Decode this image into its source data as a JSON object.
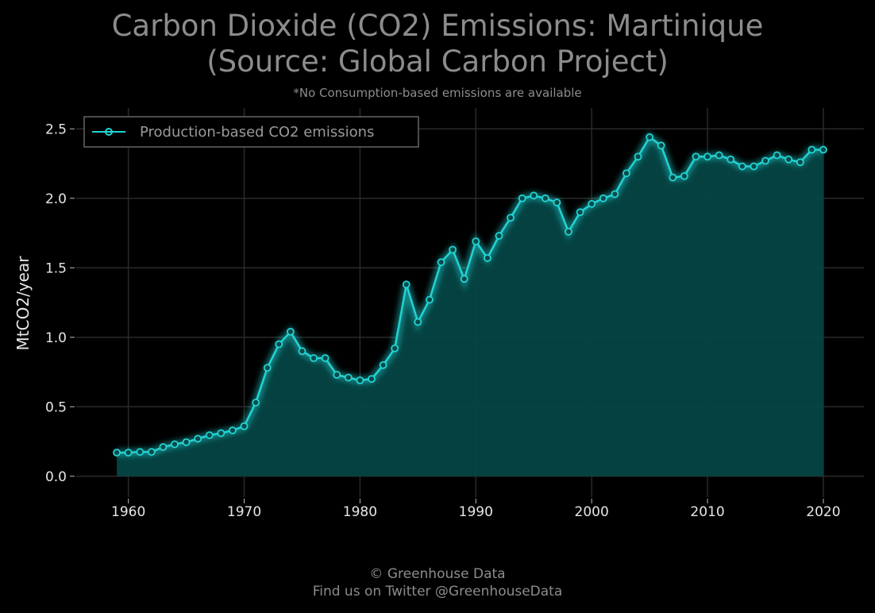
{
  "title_lines": [
    "Carbon Dioxide (CO2) Emissions: Martinique",
    "(Source: Global Carbon Project)"
  ],
  "subtitle": "*No Consumption-based emissions are available",
  "footer": {
    "line1": "© Greenhouse Data",
    "line2": "Find us on Twitter @GreenhouseData"
  },
  "colors": {
    "background": "#000000",
    "line": "#22d3d3",
    "fill": "#054545",
    "grid": "#2a2a2a",
    "text_muted": "#8c8c8c",
    "tick_text": "#e6e6e6"
  },
  "chart_data": {
    "type": "area",
    "title": "Carbon Dioxide (CO2) Emissions: Martinique (Source: Global Carbon Project)",
    "subtitle": "*No Consumption-based emissions are available",
    "xlabel": "",
    "ylabel": "MtCO2/year",
    "xlim": [
      1955.5,
      2023.5
    ],
    "ylim": [
      -0.15,
      2.65
    ],
    "xticks": [
      1960,
      1970,
      1980,
      1990,
      2000,
      2010,
      2020
    ],
    "yticks": [
      0.0,
      0.5,
      1.0,
      1.5,
      2.0,
      2.5
    ],
    "ytick_labels": [
      "0.0",
      "0.5",
      "1.0",
      "1.5",
      "2.0",
      "2.5"
    ],
    "grid": true,
    "legend_position": "top-left",
    "series": [
      {
        "name": "Production-based CO2 emissions",
        "x": [
          1959,
          1960,
          1961,
          1962,
          1963,
          1964,
          1965,
          1966,
          1967,
          1968,
          1969,
          1970,
          1971,
          1972,
          1973,
          1974,
          1975,
          1976,
          1977,
          1978,
          1979,
          1980,
          1981,
          1982,
          1983,
          1984,
          1985,
          1986,
          1987,
          1988,
          1989,
          1990,
          1991,
          1992,
          1993,
          1994,
          1995,
          1996,
          1997,
          1998,
          1999,
          2000,
          2001,
          2002,
          2003,
          2004,
          2005,
          2006,
          2007,
          2008,
          2009,
          2010,
          2011,
          2012,
          2013,
          2014,
          2015,
          2016,
          2017,
          2018,
          2019,
          2020
        ],
        "y": [
          0.17,
          0.17,
          0.175,
          0.175,
          0.21,
          0.23,
          0.245,
          0.27,
          0.295,
          0.31,
          0.33,
          0.36,
          0.53,
          0.78,
          0.95,
          1.04,
          0.9,
          0.85,
          0.85,
          0.73,
          0.71,
          0.69,
          0.7,
          0.8,
          0.92,
          1.38,
          1.11,
          1.27,
          1.54,
          1.63,
          1.42,
          1.69,
          1.57,
          1.73,
          1.86,
          2.0,
          2.02,
          2.0,
          1.97,
          1.76,
          1.9,
          1.96,
          2.0,
          2.03,
          2.18,
          2.3,
          2.44,
          2.38,
          2.15,
          2.16,
          2.3,
          2.3,
          2.31,
          2.28,
          2.23,
          2.23,
          2.27,
          2.31,
          2.28,
          2.26,
          2.35,
          2.35
        ]
      }
    ]
  }
}
